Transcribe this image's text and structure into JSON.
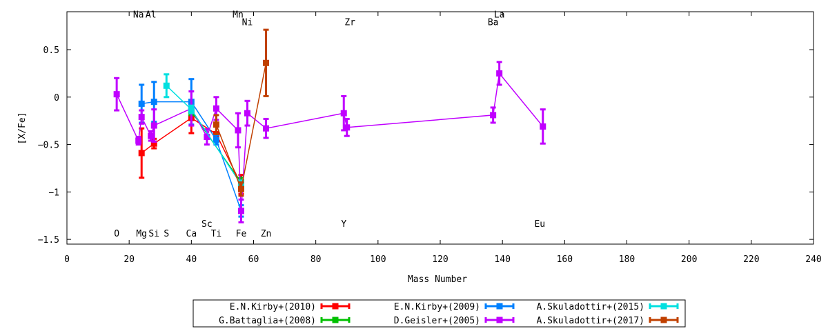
{
  "chart_data": {
    "type": "scatter",
    "xlabel": "Mass Number",
    "ylabel": "[X/Fe]",
    "xlim": [
      0,
      240
    ],
    "ylim": [
      -1.55,
      0.9
    ],
    "xticks": [
      0,
      20,
      40,
      60,
      80,
      100,
      120,
      140,
      160,
      180,
      200,
      220,
      240
    ],
    "yticks": [
      -1.5,
      -1,
      -0.5,
      0,
      0.5
    ],
    "ytick_labels": [
      "−1.5",
      "−1",
      "−0.5",
      "0",
      "0.5"
    ],
    "grid": false,
    "legend_position": "bottom-center",
    "element_labels": [
      {
        "text": "Na",
        "x": 23,
        "y": 0.84
      },
      {
        "text": "Al",
        "x": 27,
        "y": 0.84
      },
      {
        "text": "Mn",
        "x": 55,
        "y": 0.84
      },
      {
        "text": "Ni",
        "x": 58,
        "y": 0.76
      },
      {
        "text": "Zr",
        "x": 91,
        "y": 0.76
      },
      {
        "text": "La",
        "x": 139,
        "y": 0.84
      },
      {
        "text": "Ba",
        "x": 137,
        "y": 0.76
      },
      {
        "text": "O",
        "x": 16,
        "y": -1.47
      },
      {
        "text": "Mg",
        "x": 24,
        "y": -1.47
      },
      {
        "text": "Si",
        "x": 28,
        "y": -1.47
      },
      {
        "text": "S",
        "x": 32,
        "y": -1.47
      },
      {
        "text": "Ca",
        "x": 40,
        "y": -1.47
      },
      {
        "text": "Sc",
        "x": 45,
        "y": -1.37
      },
      {
        "text": "Ti",
        "x": 48,
        "y": -1.47
      },
      {
        "text": "Fe",
        "x": 56,
        "y": -1.47
      },
      {
        "text": "Zn",
        "x": 64,
        "y": -1.47
      },
      {
        "text": "Y",
        "x": 89,
        "y": -1.37
      },
      {
        "text": "Eu",
        "x": 152,
        "y": -1.37
      }
    ],
    "series": [
      {
        "name": "E.N.Kirby+(2010)",
        "color": "#ff0000",
        "points": [
          {
            "x": 24,
            "y": -0.59,
            "err": 0.26
          },
          {
            "x": 28,
            "y": -0.49,
            "err": 0.05
          },
          {
            "x": 40,
            "y": -0.22,
            "err": 0.16
          },
          {
            "x": 48,
            "y": -0.39,
            "err": 0.08
          },
          {
            "x": 56,
            "y": -0.92,
            "err": 0.1
          }
        ]
      },
      {
        "name": "G.Battaglia+(2008)",
        "color": "#00c000",
        "points": [
          {
            "x": 40,
            "y": -0.15,
            "err": 0.04
          },
          {
            "x": 56,
            "y": -0.9,
            "err": 0.05
          }
        ]
      },
      {
        "name": "E.N.Kirby+(2009)",
        "color": "#0080ff",
        "points": [
          {
            "x": 24,
            "y": -0.07,
            "err": 0.2
          },
          {
            "x": 28,
            "y": -0.05,
            "err": 0.21
          },
          {
            "x": 40,
            "y": -0.05,
            "err": 0.24
          },
          {
            "x": 48,
            "y": -0.45,
            "err": 0.05
          },
          {
            "x": 56,
            "y": -1.2,
            "err": 0.06
          }
        ]
      },
      {
        "name": "D.Geisler+(2005)",
        "color": "#c000ff",
        "points": [
          {
            "x": 16,
            "y": 0.03,
            "err": 0.17
          },
          {
            "x": 23,
            "y": -0.46,
            "err": 0.04
          },
          {
            "x": 24,
            "y": -0.21,
            "err": 0.07
          },
          {
            "x": 27,
            "y": -0.41,
            "err": 0.05
          },
          {
            "x": 28,
            "y": -0.3,
            "err": 0.17
          },
          {
            "x": 40,
            "y": -0.12,
            "err": 0.18
          },
          {
            "x": 45,
            "y": -0.42,
            "err": 0.08
          },
          {
            "x": 48,
            "y": -0.12,
            "err": 0.12
          },
          {
            "x": 55,
            "y": -0.35,
            "err": 0.18
          },
          {
            "x": 56,
            "y": -1.2,
            "err": 0.12
          },
          {
            "x": 58,
            "y": -0.17,
            "err": 0.13
          },
          {
            "x": 64,
            "y": -0.33,
            "err": 0.1
          },
          {
            "x": 89,
            "y": -0.17,
            "err": 0.18
          },
          {
            "x": 90,
            "y": -0.32,
            "err": 0.09
          },
          {
            "x": 137,
            "y": -0.19,
            "err": 0.08
          },
          {
            "x": 139,
            "y": 0.25,
            "err": 0.12
          },
          {
            "x": 153,
            "y": -0.31,
            "err": 0.18
          }
        ]
      },
      {
        "name": "A.Skuladottir+(2015)",
        "color": "#00e0e0",
        "points": [
          {
            "x": 32,
            "y": 0.12,
            "err": 0.12
          },
          {
            "x": 40,
            "y": -0.13,
            "err": 0.04
          },
          {
            "x": 56,
            "y": -0.92,
            "err": 0.04
          }
        ]
      },
      {
        "name": "A.Skuladottir+(2017)",
        "color": "#c04000",
        "points": [
          {
            "x": 48,
            "y": -0.29,
            "err": 0.1
          },
          {
            "x": 56,
            "y": -0.97,
            "err": 0.07
          },
          {
            "x": 64,
            "y": 0.36,
            "err": 0.35
          }
        ]
      }
    ]
  }
}
